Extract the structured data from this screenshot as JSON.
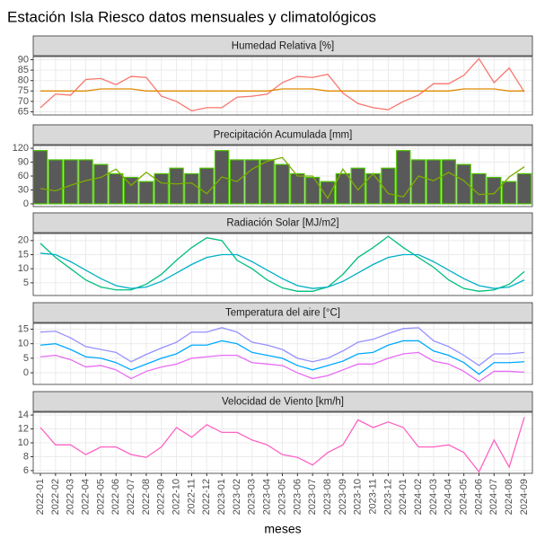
{
  "title": "Estación Isla Riesco datos mensuales y climatológicos",
  "x_label": "meses",
  "categories": [
    "2022-01",
    "2022-02",
    "2022-03",
    "2022-04",
    "2022-05",
    "2022-06",
    "2022-07",
    "2022-08",
    "2022-09",
    "2022-10",
    "2022-11",
    "2022-12",
    "2023-01",
    "2023-02",
    "2023-03",
    "2023-04",
    "2023-05",
    "2023-06",
    "2023-07",
    "2023-08",
    "2023-09",
    "2023-10",
    "2023-11",
    "2023-12",
    "2024-01",
    "2024-02",
    "2024-03",
    "2024-04",
    "2024-05",
    "2024-06",
    "2024-07",
    "2024-08",
    "2024-09"
  ],
  "chart_data": [
    {
      "type": "line",
      "title": "Humedad Relativa [%]",
      "ylim": [
        63.5,
        91.5
      ],
      "yticks": [
        65,
        70,
        75,
        80,
        85,
        90
      ],
      "grid": true,
      "series": [
        {
          "color": "#F8766D",
          "values": [
            67,
            73.5,
            73,
            80.5,
            81,
            78,
            82,
            81.5,
            72.5,
            70,
            65.5,
            67,
            67,
            72,
            72.5,
            73.5,
            79,
            82,
            81.5,
            83,
            74,
            69,
            67,
            66,
            70,
            73,
            78.5,
            78.5,
            82.5,
            90.5,
            79,
            86,
            74.5
          ]
        },
        {
          "color": "#E08B00",
          "values": [
            75,
            75,
            75,
            75,
            76,
            76,
            76,
            75,
            75,
            75,
            75,
            75,
            75,
            75,
            75,
            75,
            76,
            76,
            76,
            75,
            75,
            75,
            75,
            75,
            75,
            75,
            75,
            75,
            76,
            76,
            76,
            75,
            75
          ]
        }
      ]
    },
    {
      "type": "bar",
      "title": "Precipitación Acumulada [mm]",
      "ylim": [
        -6,
        126
      ],
      "yticks": [
        0,
        30,
        60,
        90,
        120
      ],
      "grid": true,
      "series": [
        {
          "kind": "bar",
          "color": "#595959",
          "outline": "#4CC300",
          "values": [
            115,
            95,
            95,
            95,
            85,
            65,
            57,
            48,
            65,
            77,
            65,
            77,
            115,
            95,
            95,
            95,
            85,
            65,
            57,
            48,
            65,
            77,
            65,
            77,
            115,
            95,
            95,
            95,
            85,
            65,
            57,
            48,
            65
          ]
        },
        {
          "kind": "line",
          "color": "#7CAE00",
          "values": [
            33,
            28,
            40,
            50,
            57,
            75,
            40,
            68,
            45,
            43,
            45,
            22,
            58,
            48,
            75,
            92,
            100,
            60,
            60,
            12,
            75,
            30,
            65,
            22,
            15,
            60,
            50,
            68,
            50,
            20,
            22,
            58,
            80
          ]
        }
      ]
    },
    {
      "type": "line",
      "title": "Radiación Solar [MJ/m2]",
      "ylim": [
        0.5,
        22.5
      ],
      "yticks": [
        5,
        10,
        15,
        20
      ],
      "grid": true,
      "series": [
        {
          "color": "#00BF7D",
          "values": [
            19,
            14,
            10,
            6,
            3.5,
            2.5,
            2.5,
            4.5,
            8,
            13,
            17.5,
            21,
            20,
            13,
            10,
            6,
            3.2,
            2,
            2,
            3.5,
            8,
            14,
            17.5,
            21.5,
            17.5,
            14,
            10.5,
            6,
            3,
            2,
            2.5,
            4.5,
            9
          ]
        },
        {
          "color": "#00B0C6",
          "values": [
            15.5,
            15,
            12.5,
            9.5,
            6.5,
            4,
            3,
            3.5,
            5.5,
            8.5,
            11.5,
            14,
            15,
            15,
            12.5,
            9.5,
            6.5,
            4,
            3,
            3.5,
            5.5,
            8.5,
            11.5,
            14,
            15,
            15,
            12.5,
            9.5,
            6.5,
            4,
            3,
            3.5,
            6
          ]
        }
      ]
    },
    {
      "type": "line",
      "title": "Temperatura del aire [°C]",
      "ylim": [
        -4,
        17
      ],
      "yticks": [
        0,
        5,
        10,
        15
      ],
      "grid": true,
      "series": [
        {
          "color": "#9590FF",
          "values": [
            14,
            14.3,
            12,
            9,
            8,
            7,
            3.8,
            6.3,
            8.5,
            10.5,
            14,
            14,
            15.5,
            14,
            10.5,
            9.5,
            8,
            5,
            3.8,
            5,
            7.5,
            10.5,
            11.5,
            13.5,
            15.2,
            15.5,
            11,
            9,
            6,
            2.5,
            6.5,
            6.5,
            7
          ]
        },
        {
          "color": "#00A9FF",
          "values": [
            9.5,
            10,
            8,
            5.5,
            5,
            3.5,
            1,
            3,
            5,
            6.5,
            9.5,
            9.5,
            11,
            10,
            7,
            6,
            5,
            2.5,
            1,
            2.5,
            4,
            6.5,
            7,
            9.5,
            11,
            11,
            7.5,
            6,
            3.5,
            -0.5,
            3.5,
            3.5,
            3.8
          ]
        },
        {
          "color": "#E76BF3",
          "values": [
            5.5,
            6,
            4.5,
            2,
            2.5,
            1,
            -2,
            0.5,
            2,
            3,
            5,
            5.5,
            6,
            6,
            3.5,
            3,
            2.5,
            0,
            -2,
            -1,
            1,
            3,
            3,
            5,
            6.5,
            7,
            4,
            3,
            0.5,
            -3,
            0.5,
            0.5,
            0.2
          ]
        }
      ]
    },
    {
      "type": "line",
      "title": "Velocidad de Viento [km/h]",
      "ylim": [
        5.6,
        14.4
      ],
      "yticks": [
        6,
        8,
        10,
        12,
        14
      ],
      "grid": true,
      "series": [
        {
          "color": "#FF61C3",
          "values": [
            12.2,
            9.7,
            9.7,
            8.3,
            9.4,
            9.4,
            8.3,
            7.9,
            9.4,
            12.2,
            10.8,
            12.6,
            11.5,
            11.5,
            10.4,
            9.7,
            8.3,
            7.9,
            6.8,
            8.6,
            9.7,
            13.3,
            12.2,
            13,
            12.2,
            9.4,
            9.4,
            9.7,
            8.6,
            5.8,
            10.4,
            6.5,
            13.7
          ]
        }
      ]
    }
  ]
}
